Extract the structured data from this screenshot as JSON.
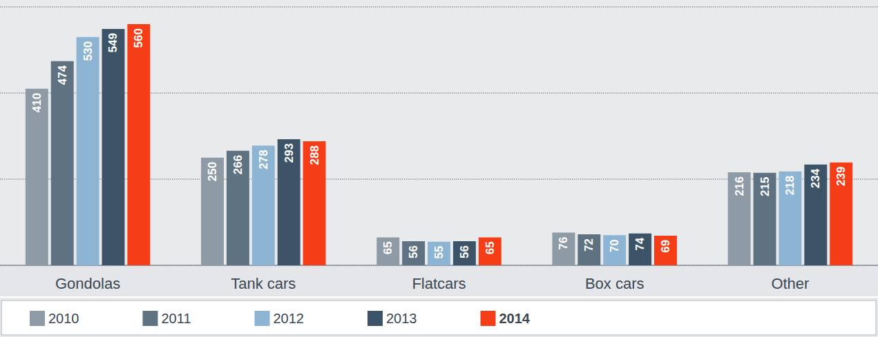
{
  "chart_data": {
    "type": "bar",
    "categories": [
      "Gondolas",
      "Tank cars",
      "Flatcars",
      "Box cars",
      "Other"
    ],
    "series": [
      {
        "name": "2010",
        "color": "#8e9aa6",
        "values": [
          410,
          250,
          65,
          76,
          216
        ]
      },
      {
        "name": "2011",
        "color": "#5f7282",
        "values": [
          474,
          266,
          56,
          72,
          215
        ]
      },
      {
        "name": "2012",
        "color": "#8db4d3",
        "values": [
          530,
          278,
          55,
          70,
          218
        ]
      },
      {
        "name": "2013",
        "color": "#3d5468",
        "values": [
          549,
          293,
          56,
          74,
          234
        ]
      },
      {
        "name": "2014",
        "color": "#f53d17",
        "values": [
          560,
          288,
          65,
          69,
          239
        ]
      }
    ],
    "ylim": [
      0,
      600
    ],
    "yticks": [
      0,
      200,
      400,
      600
    ],
    "grid": true,
    "data_labels": true,
    "tick_labels": "x",
    "legend": "bottom-left"
  }
}
